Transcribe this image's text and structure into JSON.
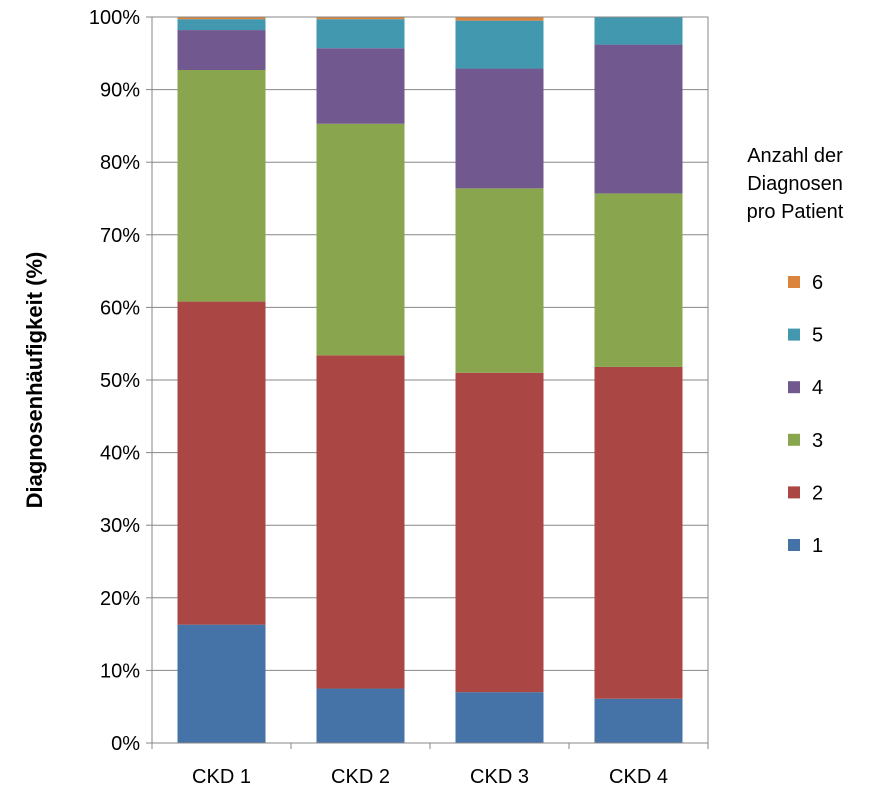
{
  "chart_data": {
    "type": "bar",
    "stacked": true,
    "normalized": true,
    "categories": [
      "CKD 1",
      "CKD 2",
      "CKD 3",
      "CKD 4"
    ],
    "ylabel": "Diagnosenhäufigkeit  (%)",
    "xlabel": "",
    "ylim": [
      0,
      100
    ],
    "y_ticks": [
      "0%",
      "10%",
      "20%",
      "30%",
      "40%",
      "50%",
      "60%",
      "70%",
      "80%",
      "90%",
      "100%"
    ],
    "grid": true,
    "legend": {
      "title_lines": [
        "Anzahl der",
        "Diagnosen",
        "pro Patient"
      ],
      "position": "right",
      "order": [
        "6",
        "5",
        "4",
        "3",
        "2",
        "1"
      ]
    },
    "series": [
      {
        "name": "1",
        "color": "#4572A7",
        "values": [
          16.3,
          7.5,
          7.0,
          6.1
        ]
      },
      {
        "name": "2",
        "color": "#AA4643",
        "values": [
          44.5,
          45.9,
          44.0,
          45.7
        ]
      },
      {
        "name": "3",
        "color": "#89A54E",
        "values": [
          31.9,
          31.9,
          25.4,
          23.9
        ]
      },
      {
        "name": "4",
        "color": "#71588F",
        "values": [
          5.5,
          10.4,
          16.5,
          20.5
        ]
      },
      {
        "name": "5",
        "color": "#4198AF",
        "values": [
          1.5,
          4.0,
          6.6,
          3.8
        ]
      },
      {
        "name": "6",
        "color": "#DB843D",
        "values": [
          0.3,
          0.3,
          0.5,
          0.0
        ]
      }
    ]
  }
}
